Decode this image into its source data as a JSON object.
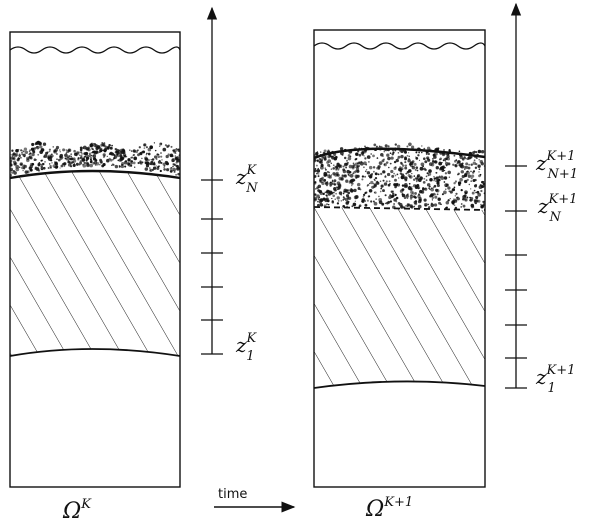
{
  "panels": [
    {
      "domain_symbol": "Ω",
      "domain_superscript": "K"
    },
    {
      "domain_symbol": "Ω",
      "domain_superscript": "K+1"
    }
  ],
  "axis_labels": {
    "left_top": {
      "base": "z",
      "sup": "K",
      "sub": "N"
    },
    "left_bottom": {
      "base": "z",
      "sup": "K",
      "sub": "1"
    },
    "right_top": {
      "base": "z",
      "sup": "K+1",
      "sub": "N+1"
    },
    "right_mid": {
      "base": "z",
      "sup": "K+1",
      "sub": "N"
    },
    "right_bottom": {
      "base": "z",
      "sup": "K+1",
      "sub": "1"
    }
  },
  "time_label": "time",
  "colors": {
    "ink": "#111111",
    "background": "#ffffff"
  }
}
